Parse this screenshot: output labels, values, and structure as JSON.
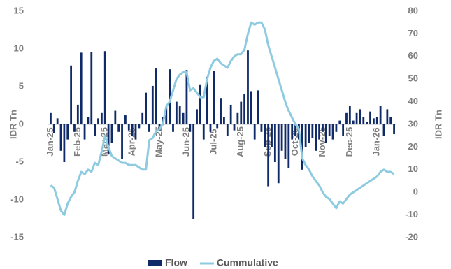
{
  "chart_data": {
    "type": "bar_line",
    "y_label": "IDR Tn",
    "y2_label": "IDR Tn",
    "categories": [
      "Jan-25",
      null,
      null,
      null,
      null,
      null,
      null,
      null,
      "Feb-25",
      null,
      null,
      null,
      null,
      null,
      null,
      null,
      "Mar-25",
      null,
      null,
      null,
      null,
      null,
      null,
      null,
      "Apr-25",
      null,
      null,
      null,
      null,
      null,
      null,
      null,
      "May-25",
      null,
      null,
      null,
      null,
      null,
      null,
      null,
      "Jun-25",
      null,
      null,
      null,
      null,
      null,
      null,
      null,
      "Jul-25",
      null,
      null,
      null,
      null,
      null,
      null,
      null,
      "Aug-25",
      null,
      null,
      null,
      null,
      null,
      null,
      null,
      "Sep-25",
      null,
      null,
      null,
      null,
      null,
      null,
      null,
      "Oct-25",
      null,
      null,
      null,
      null,
      null,
      null,
      null,
      "Nov-25",
      null,
      null,
      null,
      null,
      null,
      null,
      null,
      "Dec-25",
      null,
      null,
      null,
      null,
      null,
      null,
      null,
      "Jan-26",
      null,
      null,
      null,
      null,
      null
    ],
    "series": [
      {
        "name": "Flow",
        "color": "#0f2a66",
        "kind": "bar",
        "values": [
          1.5,
          -1.2,
          0.8,
          -3.5,
          -5,
          -2,
          7.8,
          -1,
          2.6,
          9.5,
          -2,
          1,
          9.6,
          -1.5,
          0.8,
          1.5,
          9.7,
          -4,
          -2.5,
          1.8,
          -1,
          -4.6,
          1.2,
          -0.8,
          -1.5,
          -2,
          -0.5,
          1.5,
          4.2,
          -1,
          5.1,
          7.4,
          -0.8,
          1,
          2.5,
          7.3,
          -1,
          3,
          2.4,
          1.5,
          7.2,
          -1,
          -12.5,
          2,
          5.3,
          -2,
          6.3,
          -1,
          7.1,
          -0.5,
          3.5,
          1,
          -1.5,
          2.6,
          -0.8,
          1.5,
          3,
          4,
          9.8,
          4.4,
          -2,
          4.5,
          -1,
          -3,
          -8.2,
          -3,
          -5,
          -7.8,
          -3.5,
          -4.6,
          -5.8,
          -2,
          -1.5,
          -2,
          -6,
          -3,
          -2.5,
          -1.8,
          -3.5,
          -2,
          -1,
          -2.5,
          -1.5,
          -2,
          -1,
          0.5,
          -1.5,
          1.5,
          2.5,
          0.5,
          1.5,
          2,
          1,
          0.3,
          1.7,
          0.8,
          1,
          2.5,
          -1.5,
          2,
          1,
          -1.3
        ]
      },
      {
        "name": "Cummulative",
        "color": "#8ecbe0",
        "kind": "line",
        "axis": "y2",
        "values": [
          3,
          2,
          -3,
          -8,
          -10,
          -5,
          -2,
          0,
          5,
          9,
          8,
          10,
          9,
          13,
          12,
          18,
          25,
          20,
          16,
          15,
          14,
          13,
          13,
          12,
          12,
          12,
          11,
          10,
          10,
          23,
          24,
          27,
          28,
          30,
          38,
          40,
          45,
          50,
          52,
          53,
          53,
          45,
          46,
          44,
          42,
          42,
          50,
          55,
          58,
          59,
          57,
          56,
          55,
          58,
          60,
          61,
          61,
          63,
          70,
          75,
          74,
          75,
          75,
          72,
          65,
          60,
          55,
          50,
          45,
          40,
          36,
          33,
          30,
          28,
          15,
          12,
          10,
          7,
          5,
          3,
          0,
          -2,
          -3,
          -5,
          -7,
          -4,
          -5,
          -3,
          -1,
          0,
          1,
          2,
          3,
          4,
          5,
          6,
          7,
          9,
          10,
          9,
          9,
          8
        ]
      }
    ],
    "ylim": [
      -15,
      15
    ],
    "yticks": [
      -15,
      -10,
      -5,
      0,
      5,
      10,
      15
    ],
    "y2lim": [
      -20,
      80
    ],
    "y2ticks": [
      -20,
      -10,
      0,
      10,
      20,
      30,
      40,
      50,
      60,
      70,
      80
    ],
    "legend": "bottom"
  }
}
